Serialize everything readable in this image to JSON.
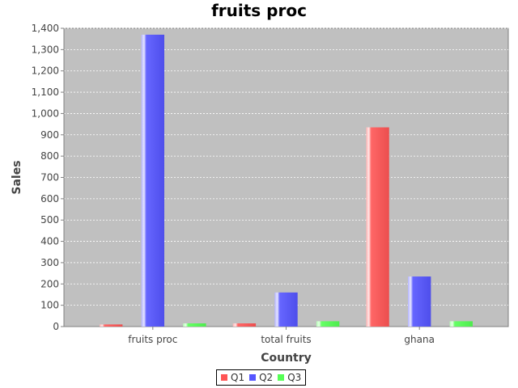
{
  "chart_data": {
    "type": "bar",
    "title": "fruits proc",
    "xlabel": "Country",
    "ylabel": "Sales",
    "categories": [
      "fruits proc",
      "total fruits",
      "ghana"
    ],
    "series": [
      {
        "name": "Q1",
        "values": [
          10,
          15,
          935
        ],
        "color": "#ff5555"
      },
      {
        "name": "Q2",
        "values": [
          1370,
          160,
          235
        ],
        "color": "#5555ff"
      },
      {
        "name": "Q3",
        "values": [
          15,
          25,
          25
        ],
        "color": "#55ff55"
      }
    ],
    "ylim": [
      0,
      1400
    ],
    "yticks": [
      "0",
      "100",
      "200",
      "300",
      "400",
      "500",
      "600",
      "700",
      "800",
      "900",
      "1,000",
      "1,100",
      "1,200",
      "1,300",
      "1,400"
    ],
    "grid": true,
    "legend_position": "bottom",
    "plot_background": "#c0c0c0"
  }
}
